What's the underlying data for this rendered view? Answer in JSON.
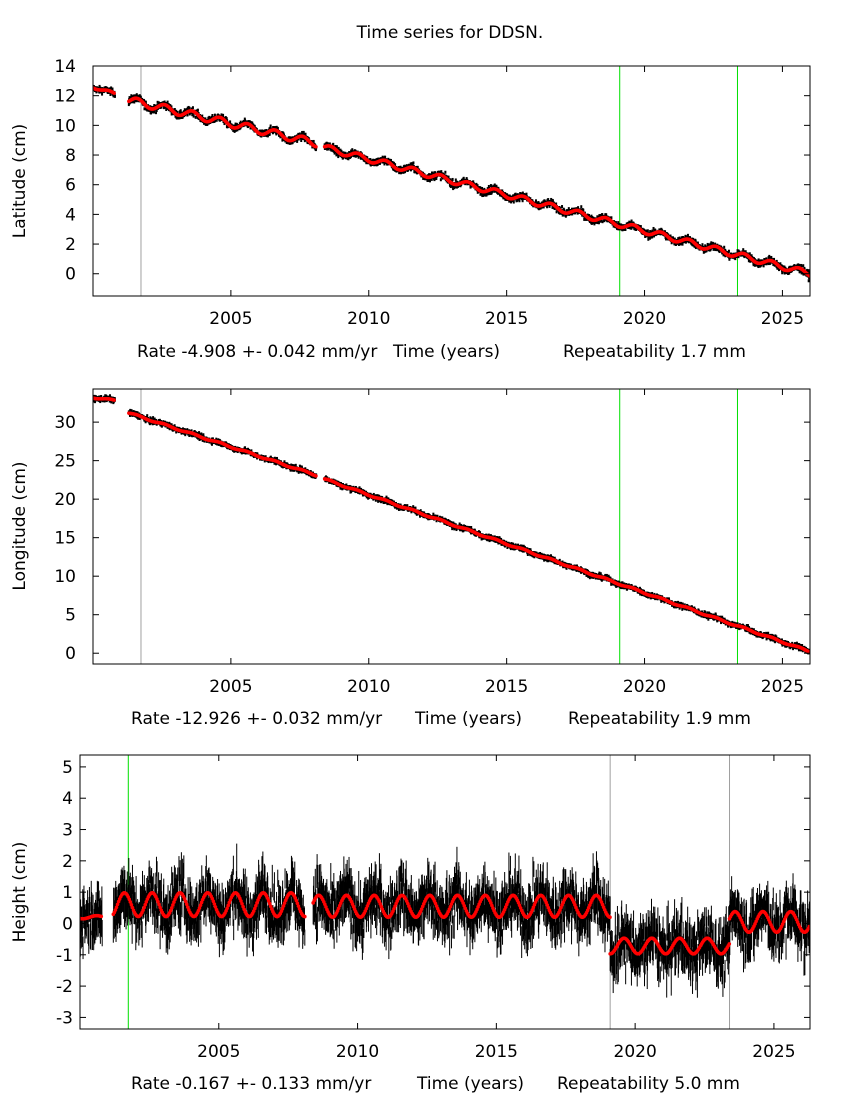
{
  "title": "Time series for DDSN.",
  "chart_data": [
    {
      "type": "scatter",
      "ylabel": "Latitude (cm)",
      "xlabel": "Time (years)",
      "rate_text": "Rate -4.908 +- 0.042 mm/yr",
      "repeatability_text": "Repeatability 1.7 mm",
      "xlim": [
        2000,
        2026
      ],
      "ylim": [
        -1.5,
        14
      ],
      "xticks": [
        2005,
        2010,
        2015,
        2020,
        2025
      ],
      "yticks": [
        0,
        2,
        4,
        6,
        8,
        10,
        12,
        14
      ],
      "vlines": [
        {
          "x": 2001.74,
          "color": "#a0a0a0"
        },
        {
          "x": 2019.1,
          "color": "#00e000"
        },
        {
          "x": 2023.37,
          "color": "#00e000"
        }
      ],
      "segments": [
        {
          "start": 2000.0,
          "end": 2000.8,
          "y_start": 12.6,
          "y_end": 12.1,
          "annual_amplitude": 0.1,
          "scatter": 0.15
        },
        {
          "start": 2001.3,
          "end": 2008.1,
          "y_start": 11.7,
          "y_end": 8.8,
          "annual_amplitude": 0.25,
          "scatter": 0.18
        },
        {
          "start": 2008.4,
          "end": 2026.0,
          "y_start": 8.5,
          "y_end": 0.0,
          "annual_amplitude": 0.2,
          "scatter": 0.18
        }
      ],
      "point_color": "#000000",
      "fit_color": "#ff0000"
    },
    {
      "type": "scatter",
      "ylabel": "Longitude (cm)",
      "xlabel": "Time (years)",
      "rate_text": "Rate -12.926 +- 0.032 mm/yr",
      "repeatability_text": "Repeatability 1.9 mm",
      "xlim": [
        2000,
        2026
      ],
      "ylim": [
        -1.4,
        34.3
      ],
      "xticks": [
        2005,
        2010,
        2015,
        2020,
        2025
      ],
      "yticks": [
        0,
        5,
        10,
        15,
        20,
        25,
        30
      ],
      "vlines": [
        {
          "x": 2001.74,
          "color": "#a0a0a0"
        },
        {
          "x": 2019.1,
          "color": "#00e000"
        },
        {
          "x": 2023.37,
          "color": "#00e000"
        }
      ],
      "segments": [
        {
          "start": 2000.0,
          "end": 2000.8,
          "y_start": 33.2,
          "y_end": 32.8,
          "annual_amplitude": 0.1,
          "scatter": 0.25
        },
        {
          "start": 2001.3,
          "end": 2008.1,
          "y_start": 31.2,
          "y_end": 23.1,
          "annual_amplitude": 0.1,
          "scatter": 0.25
        },
        {
          "start": 2008.4,
          "end": 2026.0,
          "y_start": 22.6,
          "y_end": 0.2,
          "annual_amplitude": 0.1,
          "scatter": 0.25
        }
      ],
      "point_color": "#000000",
      "fit_color": "#ff0000"
    },
    {
      "type": "scatter",
      "ylabel": "Height (cm)",
      "xlabel": "Time (years)",
      "rate_text": "Rate -0.167 +- 0.133 mm/yr",
      "repeatability_text": "Repeatability 5.0 mm",
      "xlim": [
        2000,
        2026.3
      ],
      "ylim": [
        -3.37,
        5.38
      ],
      "xticks": [
        2005,
        2010,
        2015,
        2020,
        2025
      ],
      "yticks": [
        -3,
        -2,
        -1,
        0,
        1,
        2,
        3,
        4,
        5
      ],
      "vlines": [
        {
          "x": 2001.74,
          "color": "#00e000"
        },
        {
          "x": 2019.1,
          "color": "#a0a0a0"
        },
        {
          "x": 2023.4,
          "color": "#a0a0a0"
        }
      ],
      "segments": [
        {
          "start": 2000.0,
          "end": 2000.8,
          "y_start": 0.2,
          "y_end": 0.2,
          "annual_amplitude": 0.05,
          "scatter": 0.5
        },
        {
          "start": 2001.2,
          "end": 2008.1,
          "y_start": 0.6,
          "y_end": 0.6,
          "annual_amplitude": 0.38,
          "scatter": 0.6
        },
        {
          "start": 2008.4,
          "end": 2019.1,
          "y_start": 0.55,
          "y_end": 0.55,
          "annual_amplitude": 0.35,
          "scatter": 0.6
        },
        {
          "start": 2019.1,
          "end": 2023.4,
          "y_start": -0.72,
          "y_end": -0.72,
          "annual_amplitude": 0.25,
          "scatter": 0.6
        },
        {
          "start": 2023.4,
          "end": 2026.3,
          "y_start": 0.05,
          "y_end": 0.05,
          "annual_amplitude": 0.33,
          "scatter": 0.6
        }
      ],
      "point_color": "#000000",
      "fit_color": "#ff0000"
    }
  ]
}
